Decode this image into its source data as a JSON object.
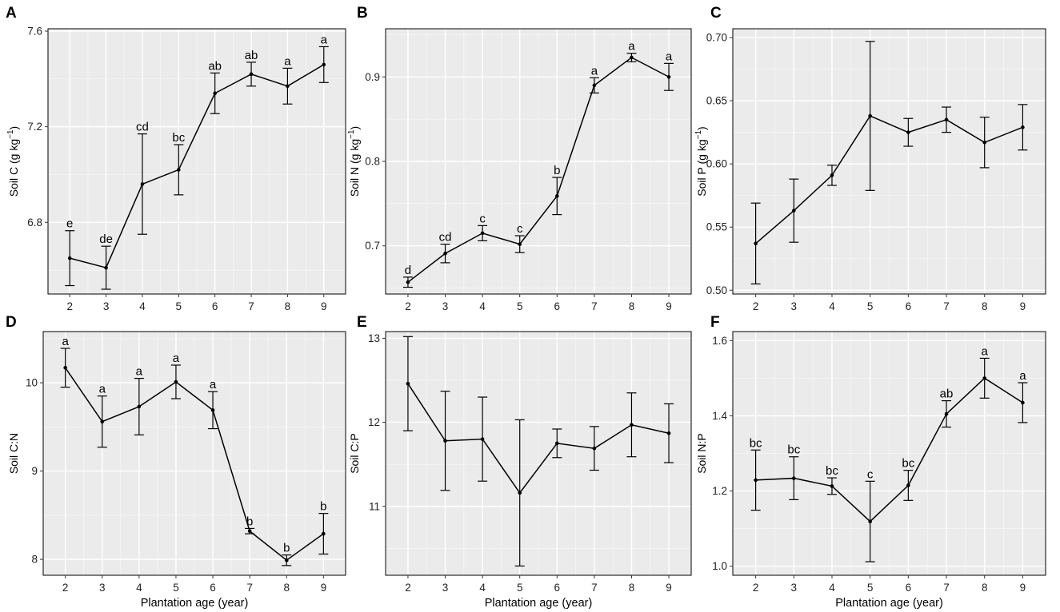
{
  "chart_data": [
    {
      "panel": "A",
      "type": "line",
      "ylabel": "Soil C (g kg",
      "ylabel_sup": "−1",
      "ylabel_suffix": ")",
      "xlabel": "",
      "x": [
        2,
        3,
        4,
        5,
        6,
        7,
        8,
        9
      ],
      "xlim": [
        1.4,
        9.6
      ],
      "ylim": [
        6.5,
        7.61
      ],
      "yticks": [
        6.8,
        7.2,
        7.6
      ],
      "ytick_labels": [
        "6.8",
        "7.2",
        "7.6"
      ],
      "y": [
        6.65,
        6.61,
        6.96,
        7.02,
        7.34,
        7.42,
        7.37,
        7.46
      ],
      "err": [
        0.115,
        0.09,
        0.21,
        0.105,
        0.085,
        0.05,
        0.075,
        0.075
      ],
      "letters": [
        "e",
        "de",
        "cd",
        "bc",
        "ab",
        "ab",
        "a",
        "a"
      ]
    },
    {
      "panel": "B",
      "type": "line",
      "ylabel": "Soil N (g kg",
      "ylabel_sup": "−1",
      "ylabel_suffix": ")",
      "xlabel": "",
      "x": [
        2,
        3,
        4,
        5,
        6,
        7,
        8,
        9
      ],
      "xlim": [
        1.4,
        9.6
      ],
      "ylim": [
        0.643,
        0.957
      ],
      "yticks": [
        0.7,
        0.8,
        0.9
      ],
      "ytick_labels": [
        "0.7",
        "0.8",
        "0.9"
      ],
      "y": [
        0.657,
        0.691,
        0.715,
        0.702,
        0.759,
        0.89,
        0.923,
        0.9
      ],
      "err": [
        0.006,
        0.011,
        0.009,
        0.01,
        0.022,
        0.009,
        0.005,
        0.016
      ],
      "letters": [
        "d",
        "cd",
        "c",
        "c",
        "b",
        "a",
        "a",
        "a"
      ]
    },
    {
      "panel": "C",
      "type": "line",
      "ylabel": "Soil P (g kg",
      "ylabel_sup": "−1",
      "ylabel_suffix": ")",
      "xlabel": "",
      "x": [
        2,
        3,
        4,
        5,
        6,
        7,
        8,
        9
      ],
      "xlim": [
        1.4,
        9.6
      ],
      "ylim": [
        0.497,
        0.707
      ],
      "yticks": [
        0.5,
        0.55,
        0.6,
        0.65,
        0.7
      ],
      "ytick_labels": [
        "0.50",
        "0.55",
        "0.60",
        "0.65",
        "0.70"
      ],
      "y": [
        0.537,
        0.563,
        0.591,
        0.638,
        0.625,
        0.635,
        0.617,
        0.629
      ],
      "err": [
        0.032,
        0.025,
        0.008,
        0.059,
        0.011,
        0.01,
        0.02,
        0.018
      ],
      "letters": []
    },
    {
      "panel": "D",
      "type": "line",
      "ylabel": "Soil C:N",
      "ylabel_sup": "",
      "ylabel_suffix": "",
      "xlabel": "Plantation age (year)",
      "x": [
        2,
        3,
        4,
        5,
        6,
        7,
        8,
        9
      ],
      "xlim": [
        1.4,
        9.6
      ],
      "ylim": [
        7.82,
        10.58
      ],
      "yticks": [
        8,
        9,
        10
      ],
      "ytick_labels": [
        "8",
        "9",
        "10"
      ],
      "y": [
        10.17,
        9.56,
        9.73,
        10.01,
        9.69,
        8.32,
        7.99,
        8.29
      ],
      "err": [
        0.22,
        0.29,
        0.32,
        0.19,
        0.21,
        0.03,
        0.06,
        0.23
      ],
      "letters": [
        "a",
        "a",
        "a",
        "a",
        "a",
        "b",
        "b",
        "b"
      ]
    },
    {
      "panel": "E",
      "type": "line",
      "ylabel": "Soil C:P",
      "ylabel_sup": "",
      "ylabel_suffix": "",
      "xlabel": "Plantation age (year)",
      "x": [
        2,
        3,
        4,
        5,
        6,
        7,
        8,
        9
      ],
      "xlim": [
        1.4,
        9.6
      ],
      "ylim": [
        10.18,
        13.08
      ],
      "yticks": [
        11,
        12,
        13
      ],
      "ytick_labels": [
        "11",
        "12",
        "13"
      ],
      "y": [
        12.46,
        11.78,
        11.8,
        11.16,
        11.75,
        11.69,
        11.97,
        11.87
      ],
      "err": [
        0.56,
        0.59,
        0.5,
        0.87,
        0.17,
        0.26,
        0.38,
        0.35
      ],
      "letters": []
    },
    {
      "panel": "F",
      "type": "line",
      "ylabel": "Soil N:P",
      "ylabel_sup": "",
      "ylabel_suffix": "",
      "xlabel": "Plantation age (year)",
      "x": [
        2,
        3,
        4,
        5,
        6,
        7,
        8,
        9
      ],
      "xlim": [
        1.4,
        9.6
      ],
      "ylim": [
        0.976,
        1.624
      ],
      "yticks": [
        1.0,
        1.2,
        1.4,
        1.6
      ],
      "ytick_labels": [
        "1.0",
        "1.2",
        "1.4",
        "1.6"
      ],
      "y": [
        1.229,
        1.234,
        1.213,
        1.119,
        1.215,
        1.405,
        1.5,
        1.435
      ],
      "err": [
        0.08,
        0.057,
        0.022,
        0.107,
        0.04,
        0.035,
        0.053,
        0.053
      ],
      "letters": [
        "bc",
        "bc",
        "bc",
        "c",
        "bc",
        "ab",
        "a",
        "a"
      ]
    }
  ]
}
